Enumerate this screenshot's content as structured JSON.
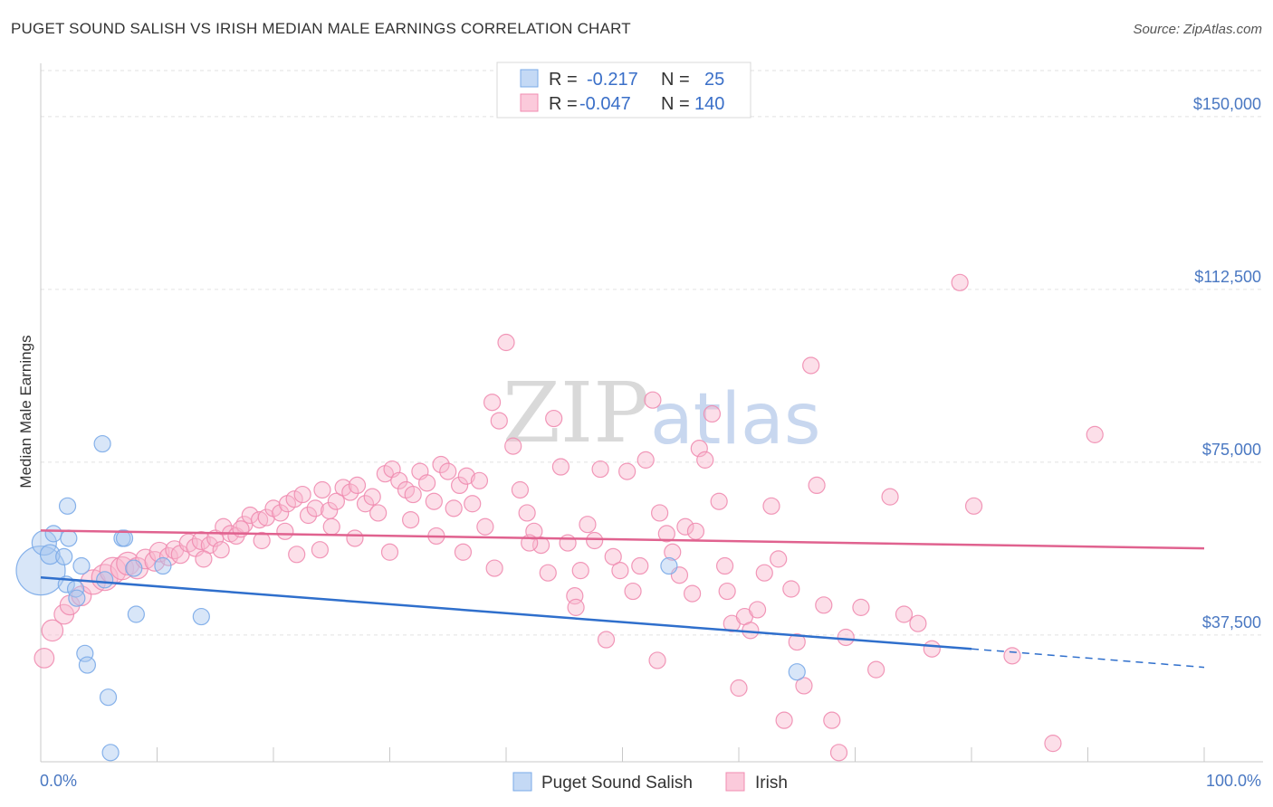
{
  "header": {
    "title": "PUGET SOUND SALISH VS IRISH MEDIAN MALE EARNINGS CORRELATION CHART",
    "source": "Source: ZipAtlas.com"
  },
  "watermark": {
    "zip": "ZIP",
    "atlas": "atlas"
  },
  "legend": {
    "rows": [
      {
        "r_label": "R =",
        "r_value": "-0.217",
        "n_label": "N =",
        "n_value": "25"
      },
      {
        "r_label": "R =",
        "r_value": "-0.047",
        "n_label": "N =",
        "n_value": "140"
      }
    ]
  },
  "chart_data": {
    "type": "scatter",
    "ylabel": "Median Male Earnings",
    "xlabel": "",
    "xlim": [
      0,
      100
    ],
    "ylim": [
      10000,
      160000
    ],
    "x_tick_labels": [
      "0.0%",
      "100.0%"
    ],
    "y_ticks": [
      37500,
      75000,
      112500,
      150000
    ],
    "y_tick_labels": [
      "$37,500",
      "$75,000",
      "$112,500",
      "$150,000"
    ],
    "grid": "horizontal dashed",
    "legend_position": "top-center",
    "colors": {
      "salish": "#7aaae8",
      "salish_line": "#2f6fcc",
      "irish": "#f08cb0",
      "irish_line": "#e0628f"
    },
    "series": [
      {
        "name": "Puget Sound Salish",
        "trend": {
          "x": [
            0,
            80,
            100
          ],
          "y": [
            50000,
            34500,
            30500
          ],
          "solid_until": 80
        },
        "points": [
          [
            0.0,
            51500,
            3
          ],
          [
            0.3,
            57500,
            1.5
          ],
          [
            0.8,
            55000,
            1.2
          ],
          [
            1.1,
            59500,
            1
          ],
          [
            2.0,
            54500,
            1
          ],
          [
            2.2,
            48500,
            1
          ],
          [
            2.3,
            65500,
            1
          ],
          [
            2.4,
            58500,
            1
          ],
          [
            3.0,
            47500,
            1
          ],
          [
            3.1,
            45500,
            1
          ],
          [
            3.5,
            52500,
            1
          ],
          [
            3.8,
            33500,
            1
          ],
          [
            4.0,
            31000,
            1
          ],
          [
            5.5,
            49500,
            1
          ],
          [
            5.3,
            79000,
            1
          ],
          [
            5.8,
            24000,
            1
          ],
          [
            6.0,
            12000,
            1
          ],
          [
            7.0,
            58500,
            1
          ],
          [
            7.2,
            58500,
            1
          ],
          [
            8.0,
            52000,
            1
          ],
          [
            8.2,
            42000,
            1
          ],
          [
            10.5,
            52500,
            1
          ],
          [
            13.8,
            41500,
            1
          ],
          [
            54.0,
            52500,
            1
          ],
          [
            65.0,
            29500,
            1
          ]
        ]
      },
      {
        "name": "Irish",
        "trend": {
          "x": [
            0,
            100
          ],
          "y": [
            60200,
            56300
          ]
        },
        "points": [
          [
            0.3,
            32500,
            1.2
          ],
          [
            1.0,
            38500,
            1.3
          ],
          [
            2.0,
            42000,
            1.2
          ],
          [
            2.5,
            44000,
            1.2
          ],
          [
            3.5,
            46000,
            1.2
          ],
          [
            4.5,
            49000,
            1.5
          ],
          [
            5.5,
            50000,
            1.6
          ],
          [
            6.2,
            51500,
            1.6
          ],
          [
            7.0,
            52000,
            1.4
          ],
          [
            7.5,
            53000,
            1.4
          ],
          [
            8.3,
            52000,
            1.3
          ],
          [
            9.0,
            54000,
            1.2
          ],
          [
            9.8,
            53500,
            1.2
          ],
          [
            10.2,
            55500,
            1.2
          ],
          [
            11.0,
            54500,
            1.1
          ],
          [
            11.5,
            56000,
            1.1
          ],
          [
            12.0,
            55000,
            1.1
          ],
          [
            12.7,
            57500,
            1.1
          ],
          [
            13.3,
            56500,
            1.1
          ],
          [
            13.8,
            58000,
            1.1
          ],
          [
            14.5,
            57000,
            1
          ],
          [
            15.0,
            58500,
            1
          ],
          [
            15.7,
            61000,
            1
          ],
          [
            16.3,
            59500,
            1
          ],
          [
            16.8,
            59000,
            1
          ],
          [
            17.5,
            61500,
            1
          ],
          [
            18.0,
            63500,
            1
          ],
          [
            18.8,
            62500,
            1
          ],
          [
            19.4,
            63000,
            1
          ],
          [
            20.0,
            65000,
            1
          ],
          [
            20.6,
            64000,
            1
          ],
          [
            21.2,
            66000,
            1
          ],
          [
            21.8,
            67000,
            1
          ],
          [
            22.5,
            68000,
            1
          ],
          [
            23.0,
            63500,
            1
          ],
          [
            23.6,
            65000,
            1
          ],
          [
            24.2,
            69000,
            1
          ],
          [
            24.8,
            64500,
            1
          ],
          [
            25.4,
            66500,
            1
          ],
          [
            26.0,
            69500,
            1
          ],
          [
            26.6,
            68500,
            1
          ],
          [
            27.2,
            70000,
            1
          ],
          [
            27.9,
            66000,
            1
          ],
          [
            28.5,
            67500,
            1
          ],
          [
            29.0,
            64000,
            1
          ],
          [
            29.6,
            72500,
            1
          ],
          [
            30.2,
            73500,
            1
          ],
          [
            30.8,
            71000,
            1
          ],
          [
            31.4,
            69000,
            1
          ],
          [
            32.0,
            68000,
            1
          ],
          [
            32.6,
            73000,
            1
          ],
          [
            33.2,
            70500,
            1
          ],
          [
            33.8,
            66500,
            1
          ],
          [
            34.4,
            74500,
            1
          ],
          [
            35.0,
            73000,
            1
          ],
          [
            35.5,
            65000,
            1
          ],
          [
            36.0,
            70000,
            1
          ],
          [
            36.6,
            72000,
            1
          ],
          [
            37.1,
            66000,
            1
          ],
          [
            37.7,
            71000,
            1
          ],
          [
            38.2,
            61000,
            1
          ],
          [
            38.8,
            88000,
            1
          ],
          [
            39.4,
            84000,
            1
          ],
          [
            40.0,
            101000,
            1
          ],
          [
            40.6,
            78500,
            1
          ],
          [
            41.2,
            69000,
            1
          ],
          [
            41.8,
            64000,
            1
          ],
          [
            42.4,
            60000,
            1
          ],
          [
            43.0,
            57000,
            1
          ],
          [
            43.6,
            51000,
            1
          ],
          [
            44.1,
            84500,
            1
          ],
          [
            44.7,
            74000,
            1
          ],
          [
            45.3,
            57500,
            1
          ],
          [
            45.9,
            46000,
            1
          ],
          [
            46.4,
            51500,
            1
          ],
          [
            47.0,
            61500,
            1
          ],
          [
            47.6,
            58000,
            1
          ],
          [
            48.1,
            73500,
            1
          ],
          [
            48.6,
            36500,
            1
          ],
          [
            49.2,
            54500,
            1
          ],
          [
            49.8,
            51500,
            1
          ],
          [
            50.4,
            73000,
            1
          ],
          [
            50.9,
            47000,
            1
          ],
          [
            51.5,
            52500,
            1
          ],
          [
            52.0,
            75500,
            1
          ],
          [
            52.6,
            88500,
            1
          ],
          [
            53.2,
            64000,
            1
          ],
          [
            53.8,
            59500,
            1
          ],
          [
            54.3,
            55500,
            1
          ],
          [
            54.9,
            50500,
            1
          ],
          [
            55.4,
            61000,
            1
          ],
          [
            56.0,
            46500,
            1
          ],
          [
            56.6,
            78000,
            1
          ],
          [
            57.1,
            75500,
            1
          ],
          [
            57.7,
            85500,
            1
          ],
          [
            58.3,
            66500,
            1
          ],
          [
            58.8,
            52500,
            1
          ],
          [
            59.4,
            40000,
            1
          ],
          [
            60.0,
            26000,
            1
          ],
          [
            60.5,
            41500,
            1
          ],
          [
            61.0,
            38500,
            1
          ],
          [
            61.6,
            43000,
            1
          ],
          [
            62.2,
            51000,
            1
          ],
          [
            62.8,
            65500,
            1
          ],
          [
            63.4,
            54000,
            1
          ],
          [
            63.9,
            19000,
            1
          ],
          [
            64.5,
            47500,
            1
          ],
          [
            65.0,
            36000,
            1
          ],
          [
            65.6,
            26500,
            1
          ],
          [
            66.2,
            96000,
            1
          ],
          [
            66.7,
            70000,
            1
          ],
          [
            67.3,
            44000,
            1
          ],
          [
            68.0,
            19000,
            1
          ],
          [
            68.6,
            12000,
            1
          ],
          [
            69.2,
            37000,
            1
          ],
          [
            70.5,
            43500,
            1
          ],
          [
            71.8,
            30000,
            1
          ],
          [
            73.0,
            67500,
            1
          ],
          [
            74.2,
            42000,
            1
          ],
          [
            75.4,
            40000,
            1
          ],
          [
            76.6,
            34500,
            1
          ],
          [
            79.0,
            114000,
            1
          ],
          [
            80.2,
            65500,
            1
          ],
          [
            83.5,
            33000,
            1
          ],
          [
            87.0,
            14000,
            1
          ],
          [
            90.6,
            81000,
            1
          ],
          [
            59.0,
            47000,
            1
          ],
          [
            56.3,
            60000,
            1
          ],
          [
            53.0,
            32000,
            1
          ],
          [
            46.0,
            43500,
            1
          ],
          [
            42.0,
            57500,
            1
          ],
          [
            39.0,
            52000,
            1
          ],
          [
            36.3,
            55500,
            1
          ],
          [
            34.0,
            59000,
            1
          ],
          [
            31.8,
            62500,
            1
          ],
          [
            30.0,
            55500,
            1
          ],
          [
            27.0,
            58500,
            1
          ],
          [
            25.0,
            61000,
            1
          ],
          [
            24.0,
            56000,
            1
          ],
          [
            22.0,
            55000,
            1
          ],
          [
            21.0,
            60000,
            1
          ],
          [
            19.0,
            58000,
            1
          ],
          [
            17.2,
            60500,
            1
          ],
          [
            15.5,
            56000,
            1
          ],
          [
            14.0,
            54000,
            1
          ]
        ]
      }
    ]
  },
  "bottom_legend": {
    "items": [
      "Puget Sound Salish",
      "Irish"
    ]
  }
}
